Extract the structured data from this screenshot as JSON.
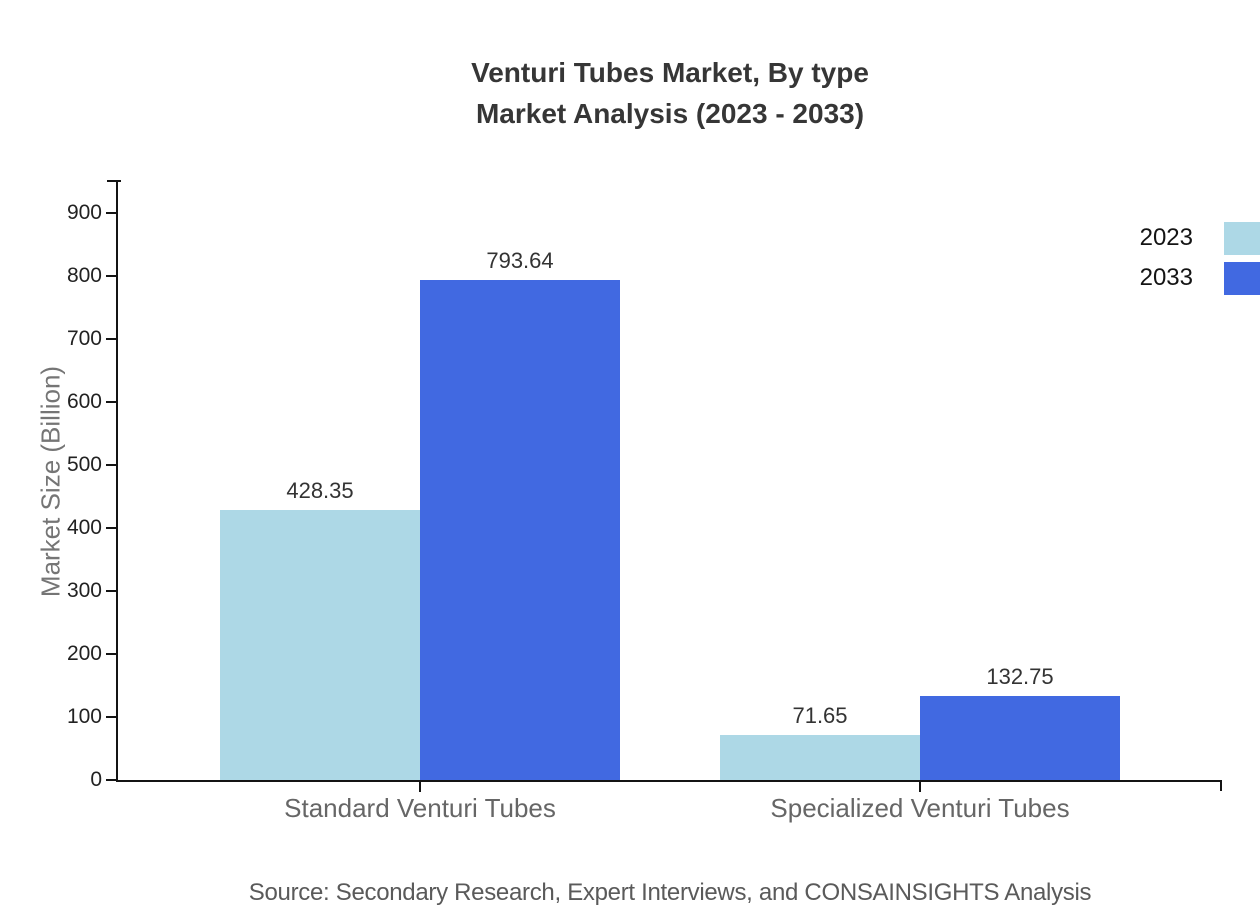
{
  "title": {
    "line1": "Venturi Tubes Market, By type",
    "line2": "Market Analysis (2023 - 2033)"
  },
  "chart_data": {
    "type": "bar",
    "categories": [
      "Standard Venturi Tubes",
      "Specialized Venturi Tubes"
    ],
    "series": [
      {
        "name": "2023",
        "color": "#ADD8E6",
        "values": [
          428.35,
          71.65
        ]
      },
      {
        "name": "2033",
        "color": "#4169E1",
        "values": [
          793.64,
          132.75
        ]
      }
    ],
    "title": "Venturi Tubes Market, By type Market Analysis (2023 - 2033)",
    "xlabel": "",
    "ylabel": "Market Size (Billion)",
    "ylim": [
      0,
      950
    ],
    "yticks": [
      0,
      100,
      200,
      300,
      400,
      500,
      600,
      700,
      800,
      900
    ],
    "grid": false,
    "legend_position": "top-right",
    "value_labels": true,
    "axis_color": "#141414"
  },
  "source": "Source: Secondary Research, Expert Interviews, and CONSAINSIGHTS Analysis"
}
